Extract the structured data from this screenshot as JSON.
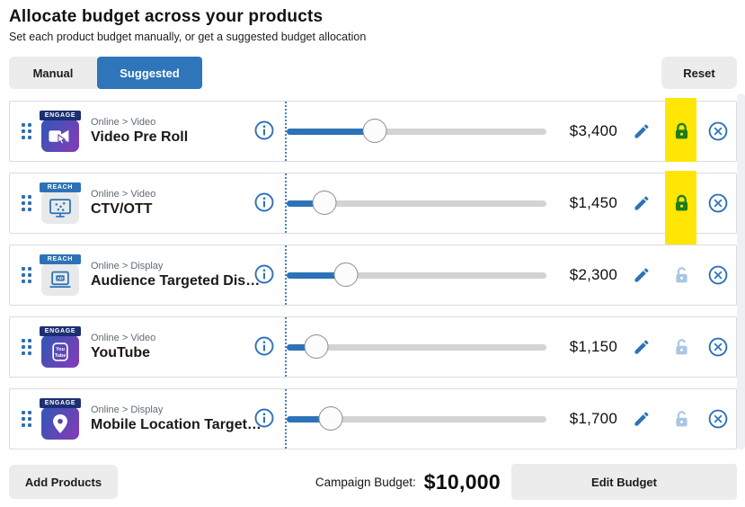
{
  "header": {
    "title": "Allocate budget across your products",
    "subtitle": "Set each product budget manually, or get a suggested budget allocation"
  },
  "tabs": {
    "manual": "Manual",
    "suggested": "Suggested",
    "active": "Suggested"
  },
  "reset_label": "Reset",
  "products": [
    {
      "category": "Online > Video",
      "name": "Video Pre Roll",
      "badge": "ENGAGE",
      "glyph": "video-camera-cursor",
      "icon_style": "purple",
      "budget_display": "$3,400",
      "slider_percent": 34,
      "locked": true,
      "highlighted": true
    },
    {
      "category": "Online > Video",
      "name": "CTV/OTT",
      "badge": "REACH",
      "glyph": "ctv-monitor",
      "icon_style": "gray",
      "budget_display": "$1,450",
      "slider_percent": 14.5,
      "locked": true,
      "highlighted": true
    },
    {
      "category": "Online > Display",
      "name": "Audience Targeted Dis…",
      "badge": "REACH",
      "glyph": "laptop-ad",
      "icon_style": "gray",
      "budget_display": "$2,300",
      "slider_percent": 23,
      "locked": false,
      "highlighted": false
    },
    {
      "category": "Online > Video",
      "name": "YouTube",
      "badge": "ENGAGE",
      "glyph": "youtube",
      "icon_style": "purple",
      "budget_display": "$1,150",
      "slider_percent": 11.5,
      "locked": false,
      "highlighted": false
    },
    {
      "category": "Online > Display",
      "name": "Mobile Location Target…",
      "badge": "ENGAGE",
      "glyph": "location-pin",
      "icon_style": "purple",
      "budget_display": "$1,700",
      "slider_percent": 17,
      "locked": false,
      "highlighted": false
    }
  ],
  "footer": {
    "add_products_label": "Add Products",
    "campaign_budget_label": "Campaign Budget:",
    "campaign_budget_value": "$10,000",
    "edit_budget_label": "Edit Budget"
  },
  "icons": {
    "drag_handle": "six-dots-grid",
    "info": "info-circle",
    "edit": "pencil",
    "locked": "lock-closed",
    "unlocked": "lock-open",
    "remove": "circle-x"
  },
  "colors": {
    "accent_blue": "#2d72b8",
    "tab_active_bg": "#2e75ba",
    "button_gray_bg": "#ececec",
    "locked_green": "#1e7b1e",
    "unlocked_blue": "#a9c6e4",
    "highlight_yellow": "#ffe604",
    "slider_track": "#d3d3d3",
    "badge_engage_bg": "#1c2f72",
    "badge_reach_bg": "#2d72b8"
  }
}
